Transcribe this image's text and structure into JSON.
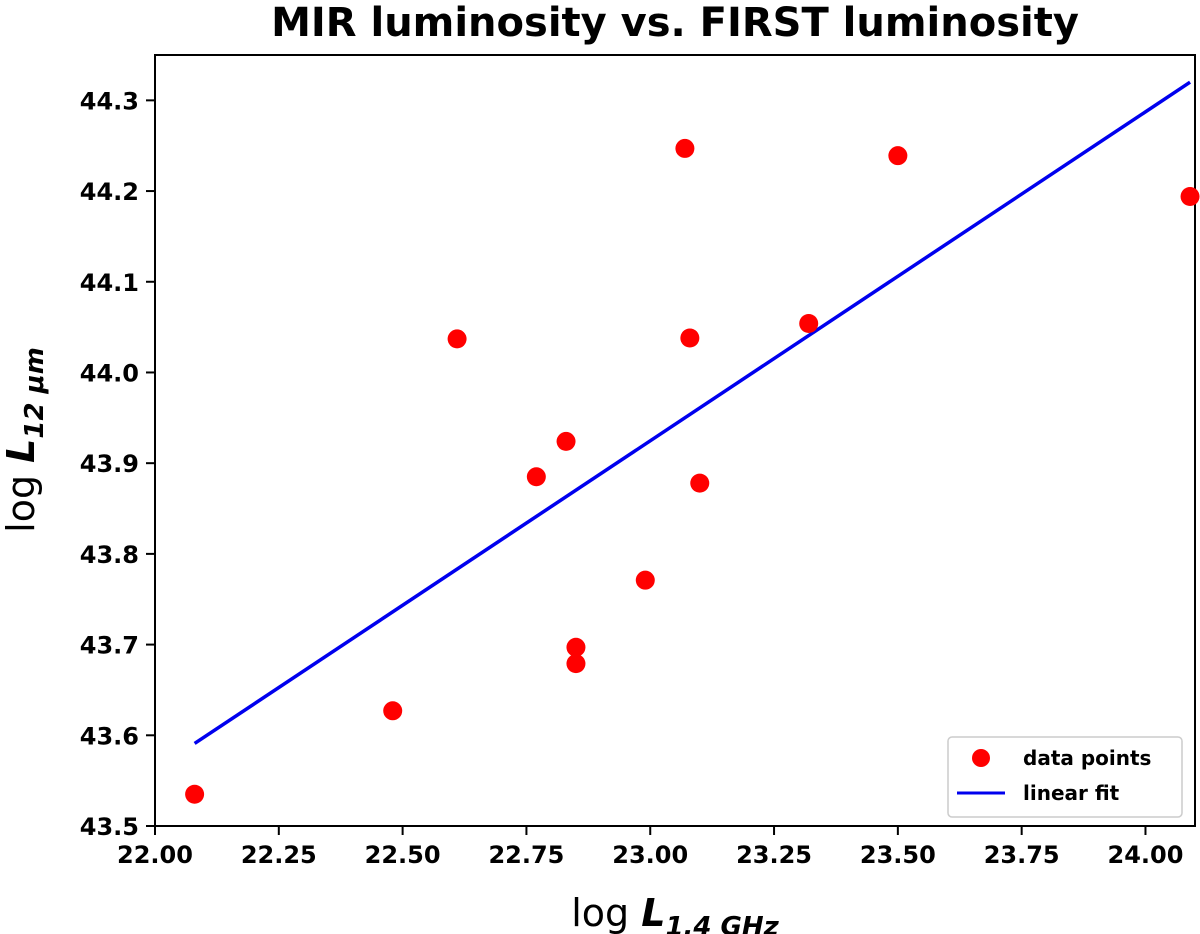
{
  "chart_data": {
    "type": "scatter",
    "title": "MIR luminosity vs. FIRST luminosity",
    "xlabel": {
      "prefix": "log ",
      "main": "L",
      "sub": "1.4 GHz"
    },
    "ylabel": {
      "prefix": "log ",
      "main": "L",
      "sub": "12 μm"
    },
    "xlim": [
      22.0,
      24.1
    ],
    "ylim": [
      43.5,
      44.35
    ],
    "xticks": [
      22.0,
      22.25,
      22.5,
      22.75,
      23.0,
      23.25,
      23.5,
      23.75,
      24.0
    ],
    "xtick_labels": [
      "22.00",
      "22.25",
      "22.50",
      "22.75",
      "23.00",
      "23.25",
      "23.50",
      "23.75",
      "24.00"
    ],
    "yticks": [
      43.5,
      43.6,
      43.7,
      43.8,
      43.9,
      44.0,
      44.1,
      44.2,
      44.3
    ],
    "ytick_labels": [
      "43.5",
      "43.6",
      "43.7",
      "43.8",
      "43.9",
      "44.0",
      "44.1",
      "44.2",
      "44.3"
    ],
    "series": [
      {
        "name": "data points",
        "kind": "scatter",
        "color": "#ff0000",
        "x": [
          22.08,
          22.48,
          22.61,
          22.77,
          22.83,
          22.85,
          22.85,
          22.99,
          23.07,
          23.08,
          23.1,
          23.32,
          23.5,
          24.09
        ],
        "y": [
          43.535,
          43.627,
          44.037,
          43.885,
          43.924,
          43.679,
          43.697,
          43.771,
          44.247,
          44.038,
          43.878,
          44.054,
          44.239,
          44.194
        ]
      },
      {
        "name": "linear fit",
        "kind": "line",
        "color": "#0000ee",
        "x": [
          22.08,
          24.09
        ],
        "y": [
          43.591,
          44.32
        ]
      }
    ],
    "legend": {
      "placement": "lower-right",
      "entries": [
        "data points",
        "linear fit"
      ]
    },
    "grid": false
  }
}
